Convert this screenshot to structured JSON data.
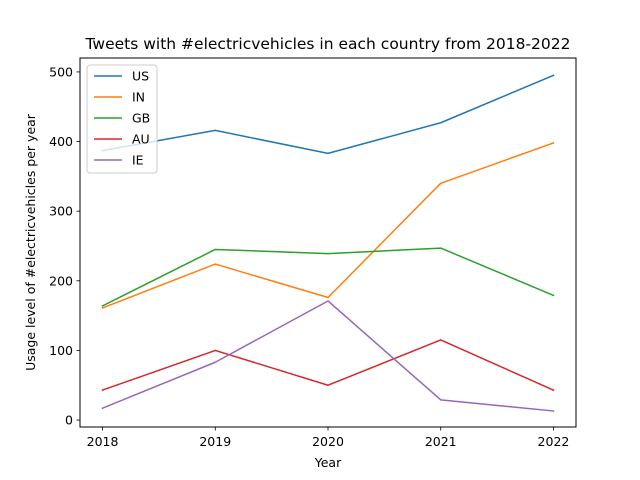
{
  "chart_data": {
    "type": "line",
    "title": "Tweets with #electricvehicles in each country from 2018-2022",
    "xlabel": "Year",
    "ylabel": "Usage level of #electricvehicles per year",
    "x": [
      2018,
      2019,
      2020,
      2021,
      2022
    ],
    "x_tick_labels": [
      "2018",
      "2019",
      "2020",
      "2021",
      "2022"
    ],
    "y_ticks": [
      0,
      100,
      200,
      300,
      400,
      500
    ],
    "y_tick_labels": [
      "0",
      "100",
      "200",
      "300",
      "400",
      "500"
    ],
    "xlim": [
      2017.8,
      2022.2
    ],
    "ylim": [
      -10,
      520
    ],
    "grid": false,
    "legend_position": "top-left",
    "series": [
      {
        "name": "US",
        "color": "#1f77b4",
        "values": [
          387,
          416,
          383,
          427,
          495
        ]
      },
      {
        "name": "IN",
        "color": "#ff7f0e",
        "values": [
          161,
          224,
          176,
          340,
          398
        ]
      },
      {
        "name": "GB",
        "color": "#2ca02c",
        "values": [
          164,
          245,
          239,
          247,
          179
        ]
      },
      {
        "name": "AU",
        "color": "#d62728",
        "values": [
          43,
          100,
          50,
          115,
          43
        ]
      },
      {
        "name": "IE",
        "color": "#9467bd",
        "values": [
          17,
          83,
          171,
          29,
          13
        ]
      }
    ]
  }
}
